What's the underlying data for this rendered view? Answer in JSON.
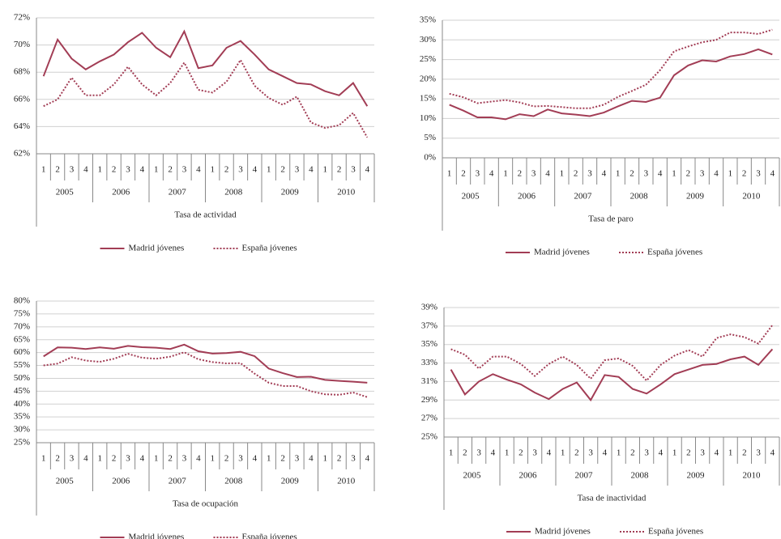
{
  "chart_data": [
    {
      "type": "line",
      "title": "Tasa de actividad",
      "categories": [
        "1",
        "2",
        "3",
        "4",
        "1",
        "2",
        "3",
        "4",
        "1",
        "2",
        "3",
        "4",
        "1",
        "2",
        "3",
        "4",
        "1",
        "2",
        "3",
        "4",
        "1",
        "2",
        "3",
        "4"
      ],
      "groups": [
        "2005",
        "2006",
        "2007",
        "2008",
        "2009",
        "2010"
      ],
      "ylim": [
        62,
        72
      ],
      "yticks": [
        {
          "value": 62,
          "label": "62%"
        },
        {
          "value": 64,
          "label": "64%"
        },
        {
          "value": 66,
          "label": "66%"
        },
        {
          "value": 68,
          "label": "68%"
        },
        {
          "value": 70,
          "label": "70%"
        },
        {
          "value": 72,
          "label": "72%"
        }
      ],
      "grid": true,
      "series": [
        {
          "name": "Madrid jóvenes",
          "color": "#a23d55",
          "style": "solid",
          "values": [
            67.7,
            70.4,
            69.0,
            68.2,
            68.8,
            69.3,
            70.2,
            70.9,
            69.8,
            69.1,
            71.0,
            68.3,
            68.5,
            69.8,
            70.3,
            69.3,
            68.2,
            67.7,
            67.2,
            67.1,
            66.6,
            66.3,
            67.2,
            65.5
          ]
        },
        {
          "name": "España jóvenes",
          "color": "#a23d55",
          "style": "dotted",
          "values": [
            65.5,
            66.0,
            67.6,
            66.3,
            66.3,
            67.1,
            68.4,
            67.1,
            66.3,
            67.2,
            68.7,
            66.7,
            66.5,
            67.3,
            68.9,
            67.0,
            66.1,
            65.6,
            66.2,
            64.3,
            63.9,
            64.1,
            65.0,
            63.2
          ]
        }
      ]
    },
    {
      "type": "line",
      "title": "Tasa de paro",
      "categories": [
        "1",
        "2",
        "3",
        "4",
        "1",
        "2",
        "3",
        "4",
        "1",
        "2",
        "3",
        "4",
        "1",
        "2",
        "3",
        "4",
        "1",
        "2",
        "3",
        "4",
        "1",
        "2",
        "3",
        "4"
      ],
      "groups": [
        "2005",
        "2006",
        "2007",
        "2008",
        "2009",
        "2010"
      ],
      "ylim": [
        0,
        35
      ],
      "yticks": [
        {
          "value": 0,
          "label": "0%"
        },
        {
          "value": 5,
          "label": "5%"
        },
        {
          "value": 10,
          "label": "10%"
        },
        {
          "value": 15,
          "label": "15%"
        },
        {
          "value": 20,
          "label": "20%"
        },
        {
          "value": 25,
          "label": "25%"
        },
        {
          "value": 30,
          "label": "30%"
        },
        {
          "value": 35,
          "label": "35%"
        }
      ],
      "grid": true,
      "series": [
        {
          "name": "Madrid jóvenes",
          "color": "#a23d55",
          "style": "solid",
          "values": [
            13.5,
            12.0,
            10.3,
            10.3,
            9.8,
            11.1,
            10.6,
            12.3,
            11.3,
            11.0,
            10.6,
            11.5,
            13.1,
            14.5,
            14.2,
            15.3,
            21.0,
            23.5,
            24.8,
            24.5,
            25.8,
            26.4,
            27.6,
            26.3
          ]
        },
        {
          "name": "España jóvenes",
          "color": "#a23d55",
          "style": "dotted",
          "values": [
            16.3,
            15.4,
            13.9,
            14.3,
            14.7,
            14.1,
            13.1,
            13.2,
            12.9,
            12.6,
            12.6,
            13.5,
            15.5,
            17.0,
            18.6,
            22.3,
            27.1,
            28.3,
            29.4,
            30.0,
            31.9,
            31.9,
            31.5,
            32.6
          ]
        }
      ]
    },
    {
      "type": "line",
      "title": "Tasa de ocupación",
      "categories": [
        "1",
        "2",
        "3",
        "4",
        "1",
        "2",
        "3",
        "4",
        "1",
        "2",
        "3",
        "4",
        "1",
        "2",
        "3",
        "4",
        "1",
        "2",
        "3",
        "4",
        "1",
        "2",
        "3",
        "4"
      ],
      "groups": [
        "2005",
        "2006",
        "2007",
        "2008",
        "2009",
        "2010"
      ],
      "ylim": [
        25,
        80
      ],
      "yticks": [
        {
          "value": 25,
          "label": "25%"
        },
        {
          "value": 30,
          "label": "30%"
        },
        {
          "value": 35,
          "label": "35%"
        },
        {
          "value": 40,
          "label": "40%"
        },
        {
          "value": 45,
          "label": "45%"
        },
        {
          "value": 50,
          "label": "50%"
        },
        {
          "value": 55,
          "label": "55%"
        },
        {
          "value": 60,
          "label": "60%"
        },
        {
          "value": 65,
          "label": "65%"
        },
        {
          "value": 70,
          "label": "70%"
        },
        {
          "value": 75,
          "label": "75%"
        },
        {
          "value": 80,
          "label": "80%"
        }
      ],
      "grid": true,
      "series": [
        {
          "name": "Madrid jóvenes",
          "color": "#a23d55",
          "style": "solid",
          "values": [
            58.5,
            62.0,
            61.9,
            61.4,
            62.0,
            61.5,
            62.6,
            62.1,
            61.9,
            61.4,
            63.1,
            60.5,
            59.6,
            59.8,
            60.3,
            58.6,
            53.8,
            52.0,
            50.5,
            50.6,
            49.4,
            49.0,
            48.7,
            48.3
          ]
        },
        {
          "name": "España jóvenes",
          "color": "#a23d55",
          "style": "dotted",
          "values": [
            55.0,
            55.7,
            58.2,
            56.9,
            56.4,
            57.6,
            59.5,
            58.0,
            57.6,
            58.4,
            60.1,
            57.4,
            56.3,
            55.8,
            55.9,
            51.8,
            48.3,
            47.0,
            47.0,
            45.0,
            43.8,
            43.6,
            44.5,
            42.7
          ]
        }
      ]
    },
    {
      "type": "line",
      "title": "Tasa de inactividad",
      "categories": [
        "1",
        "2",
        "3",
        "4",
        "1",
        "2",
        "3",
        "4",
        "1",
        "2",
        "3",
        "4",
        "1",
        "2",
        "3",
        "4",
        "1",
        "2",
        "3",
        "4",
        "1",
        "2",
        "3",
        "4"
      ],
      "groups": [
        "2005",
        "2006",
        "2007",
        "2008",
        "2009",
        "2010"
      ],
      "ylim": [
        25,
        39
      ],
      "yticks": [
        {
          "value": 25,
          "label": "25%"
        },
        {
          "value": 27,
          "label": "27%"
        },
        {
          "value": 29,
          "label": "29%"
        },
        {
          "value": 31,
          "label": "31%"
        },
        {
          "value": 33,
          "label": "33%"
        },
        {
          "value": 35,
          "label": "35%"
        },
        {
          "value": 37,
          "label": "37%"
        },
        {
          "value": 39,
          "label": "39%"
        }
      ],
      "grid": true,
      "series": [
        {
          "name": "Madrid jóvenes",
          "color": "#a23d55",
          "style": "solid",
          "values": [
            32.3,
            29.6,
            31.0,
            31.8,
            31.2,
            30.7,
            29.8,
            29.1,
            30.2,
            30.9,
            29.0,
            31.7,
            31.5,
            30.2,
            29.7,
            30.7,
            31.8,
            32.3,
            32.8,
            32.9,
            33.4,
            33.7,
            32.8,
            34.5
          ]
        },
        {
          "name": "España jóvenes",
          "color": "#a23d55",
          "style": "dotted",
          "values": [
            34.5,
            33.9,
            32.4,
            33.7,
            33.7,
            32.9,
            31.6,
            32.9,
            33.7,
            32.8,
            31.3,
            33.3,
            33.5,
            32.7,
            31.1,
            32.8,
            33.8,
            34.4,
            33.7,
            35.7,
            36.1,
            35.8,
            35.1,
            37.1
          ]
        }
      ]
    }
  ]
}
